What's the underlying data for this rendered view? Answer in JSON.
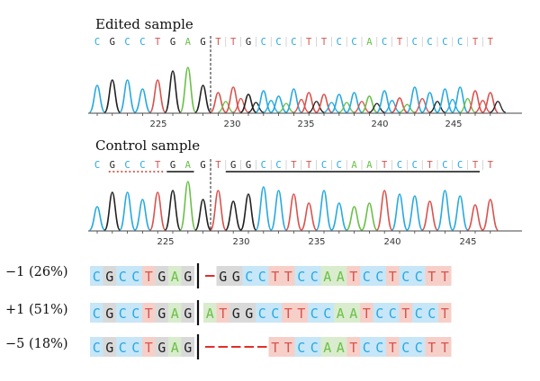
{
  "colors": {
    "C": "#29a9e0",
    "G": "#222222",
    "A": "#6cbf4a",
    "T": "#d9534f",
    "bgC": "#c7e6f7",
    "bgG": "#d9d9d9",
    "bgA": "#d9eccd",
    "bgT": "#f6d0c8"
  },
  "panels": [
    {
      "title": "Edited sample",
      "sequence": "CGCCTGAGTTGCCCTTCCACTCCCCTT",
      "ticks": [
        "225",
        "230",
        "235",
        "240",
        "245"
      ],
      "top_marks": "none"
    },
    {
      "title": "Control sample",
      "sequence": "CGCCTGAGTGGCCTTCCAATCCTCCTT",
      "ticks": [
        "225",
        "230",
        "235",
        "240",
        "245"
      ],
      "top_marks": "underline"
    }
  ],
  "alignment_rows": [
    {
      "label": "−1 (26%)",
      "prefix": "CGCCTGAG",
      "suffix": "-GGCCTTCCAATCCTCCTT"
    },
    {
      "label": "+1 (51%)",
      "prefix": "CGCCTGAG",
      "suffix": "ATGGCCTTCCAATCCTCCT"
    },
    {
      "label": "−5 (18%)",
      "prefix": "CGCCTGAG",
      "suffix": "-----TTCCAATCCTCCTT"
    }
  ]
}
